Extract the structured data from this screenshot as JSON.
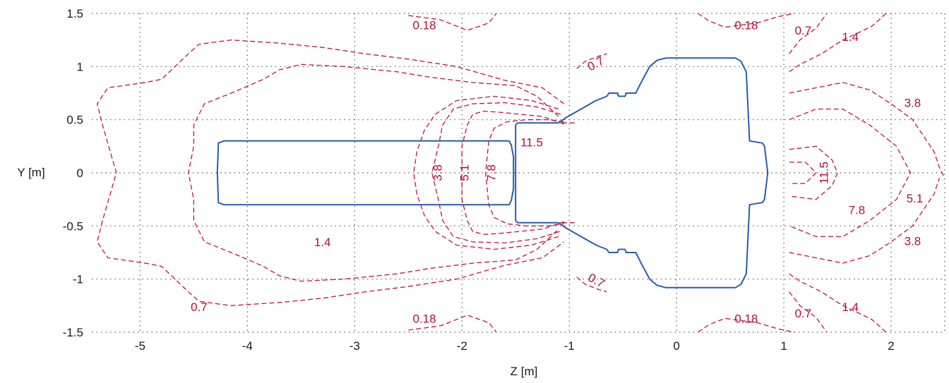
{
  "chart_data": {
    "type": "contour",
    "xlabel": "Z [m]",
    "ylabel": "Y [m]",
    "xlim": [
      -5.45,
      2.5
    ],
    "ylim": [
      -1.5,
      1.5
    ],
    "grid": true,
    "x_ticks": [
      "-5",
      "-4",
      "-3",
      "-2",
      "-1",
      "0",
      "1",
      "2"
    ],
    "y_ticks": [
      "1.5",
      "1",
      "0.5",
      "0",
      "-0.5",
      "-1",
      "-1.5"
    ],
    "colors": {
      "contour": "#c0143c",
      "outline": "#2a5caa",
      "grid": "#555555"
    },
    "contour_labels": [
      {
        "text": "0.18",
        "x": -2.35,
        "y": 1.38,
        "rot": 0
      },
      {
        "text": "0.18",
        "x": 0.65,
        "y": 1.38,
        "rot": 0
      },
      {
        "text": "0.7",
        "x": 1.18,
        "y": 1.33,
        "rot": 0
      },
      {
        "text": "1.4",
        "x": 1.62,
        "y": 1.27,
        "rot": 0
      },
      {
        "text": "0.7",
        "x": -0.75,
        "y": 1.02,
        "rot": -28
      },
      {
        "text": "3.8",
        "x": 2.2,
        "y": 0.65,
        "rot": 0
      },
      {
        "text": "11.5",
        "x": -1.35,
        "y": 0.28,
        "rot": 0
      },
      {
        "text": "3.8",
        "x": -2.22,
        "y": 0.0,
        "rot": -90
      },
      {
        "text": "5.1",
        "x": -1.97,
        "y": 0.0,
        "rot": -90
      },
      {
        "text": "7.8",
        "x": -1.72,
        "y": 0.0,
        "rot": -90
      },
      {
        "text": "11.5",
        "x": 1.38,
        "y": 0.0,
        "rot": -90
      },
      {
        "text": "5.1",
        "x": 2.22,
        "y": -0.25,
        "rot": 0
      },
      {
        "text": "7.8",
        "x": 1.68,
        "y": -0.36,
        "rot": 0
      },
      {
        "text": "3.8",
        "x": 2.2,
        "y": -0.65,
        "rot": 0
      },
      {
        "text": "1.4",
        "x": -3.3,
        "y": -0.66,
        "rot": 0
      },
      {
        "text": "0.7",
        "x": -0.75,
        "y": -1.02,
        "rot": 28
      },
      {
        "text": "0.7",
        "x": -4.45,
        "y": -1.27,
        "rot": 0
      },
      {
        "text": "1.4",
        "x": 1.62,
        "y": -1.27,
        "rot": 0
      },
      {
        "text": "0.7",
        "x": 1.18,
        "y": -1.33,
        "rot": 0
      },
      {
        "text": "0.18",
        "x": -2.35,
        "y": -1.38,
        "rot": 0
      },
      {
        "text": "0.18",
        "x": 0.65,
        "y": -1.38,
        "rot": 0
      }
    ],
    "contour_lines": [
      [
        [
          -2.5,
          1.48
        ],
        [
          -2.2,
          1.44
        ],
        [
          -1.95,
          1.34
        ],
        [
          -1.75,
          1.41
        ],
        [
          -1.68,
          1.5
        ]
      ],
      [
        [
          0.2,
          1.5
        ],
        [
          0.3,
          1.43
        ],
        [
          0.45,
          1.37
        ],
        [
          0.75,
          1.41
        ],
        [
          0.95,
          1.47
        ],
        [
          1.1,
          1.5
        ]
      ],
      [
        [
          1.05,
          1.12
        ],
        [
          1.15,
          1.25
        ],
        [
          1.3,
          1.36
        ],
        [
          1.4,
          1.5
        ]
      ],
      [
        [
          1.05,
          0.95
        ],
        [
          1.15,
          1.02
        ],
        [
          1.35,
          1.12
        ],
        [
          1.55,
          1.25
        ],
        [
          1.7,
          1.32
        ],
        [
          1.82,
          1.38
        ],
        [
          1.9,
          1.45
        ],
        [
          1.95,
          1.5
        ]
      ],
      [
        [
          -0.93,
          0.98
        ],
        [
          -0.85,
          1.05
        ],
        [
          -0.72,
          1.1
        ],
        [
          -0.65,
          1.12
        ]
      ],
      [
        [
          -1.1,
          0.53
        ],
        [
          -1.3,
          0.72
        ],
        [
          -1.5,
          0.82
        ],
        [
          -1.9,
          0.85
        ],
        [
          -2.3,
          0.9
        ],
        [
          -2.6,
          0.95
        ],
        [
          -3.1,
          1.0
        ],
        [
          -3.5,
          1.02
        ],
        [
          -3.7,
          0.97
        ],
        [
          -3.85,
          0.88
        ],
        [
          -4.15,
          0.75
        ],
        [
          -4.4,
          0.65
        ],
        [
          -4.5,
          0.45
        ],
        [
          -4.5,
          0.25
        ],
        [
          -4.55,
          0.0
        ],
        [
          -4.5,
          -0.25
        ],
        [
          -4.5,
          -0.45
        ],
        [
          -4.4,
          -0.65
        ],
        [
          -4.15,
          -0.75
        ],
        [
          -3.85,
          -0.88
        ],
        [
          -3.7,
          -0.97
        ],
        [
          -3.5,
          -1.02
        ],
        [
          -3.1,
          -1.0
        ],
        [
          -2.6,
          -0.95
        ],
        [
          -2.3,
          -0.9
        ],
        [
          -1.9,
          -0.85
        ],
        [
          -1.5,
          -0.82
        ],
        [
          -1.3,
          -0.72
        ],
        [
          -1.1,
          -0.53
        ]
      ],
      [
        [
          -1.05,
          0.65
        ],
        [
          -1.25,
          0.8
        ],
        [
          -1.6,
          0.87
        ],
        [
          -2.05,
          1.0
        ],
        [
          -2.5,
          1.07
        ],
        [
          -2.9,
          1.12
        ],
        [
          -3.3,
          1.18
        ],
        [
          -3.7,
          1.22
        ],
        [
          -4.15,
          1.25
        ],
        [
          -4.45,
          1.21
        ],
        [
          -4.55,
          1.12
        ],
        [
          -4.8,
          0.88
        ],
        [
          -4.95,
          0.85
        ],
        [
          -5.3,
          0.8
        ],
        [
          -5.4,
          0.65
        ],
        [
          -5.35,
          0.45
        ],
        [
          -5.25,
          0.1
        ],
        [
          -5.22,
          0.0
        ],
        [
          -5.25,
          -0.1
        ],
        [
          -5.35,
          -0.45
        ],
        [
          -5.4,
          -0.65
        ],
        [
          -5.3,
          -0.8
        ],
        [
          -4.95,
          -0.85
        ],
        [
          -4.8,
          -0.88
        ],
        [
          -4.55,
          -1.12
        ],
        [
          -4.45,
          -1.21
        ],
        [
          -4.15,
          -1.25
        ],
        [
          -3.7,
          -1.22
        ],
        [
          -3.3,
          -1.18
        ],
        [
          -2.9,
          -1.12
        ],
        [
          -2.5,
          -1.07
        ],
        [
          -2.05,
          -1.0
        ],
        [
          -1.6,
          -0.87
        ],
        [
          -1.25,
          -0.8
        ],
        [
          -1.05,
          -0.65
        ]
      ],
      [
        [
          -1.05,
          0.46
        ],
        [
          -1.25,
          0.53
        ],
        [
          -1.45,
          0.55
        ],
        [
          -1.65,
          0.57
        ],
        [
          -1.8,
          0.58
        ],
        [
          -1.9,
          0.55
        ],
        [
          -1.95,
          0.45
        ],
        [
          -2.0,
          0.25
        ],
        [
          -2.0,
          0.0
        ],
        [
          -2.0,
          -0.25
        ],
        [
          -1.95,
          -0.45
        ],
        [
          -1.9,
          -0.55
        ],
        [
          -1.8,
          -0.58
        ],
        [
          -1.65,
          -0.57
        ],
        [
          -1.45,
          -0.55
        ],
        [
          -1.25,
          -0.53
        ],
        [
          -1.05,
          -0.46
        ]
      ],
      [
        [
          -1.08,
          0.55
        ],
        [
          -1.3,
          0.62
        ],
        [
          -1.6,
          0.66
        ],
        [
          -1.9,
          0.65
        ],
        [
          -2.08,
          0.6
        ],
        [
          -2.18,
          0.45
        ],
        [
          -2.22,
          0.25
        ],
        [
          -2.28,
          0.0
        ],
        [
          -2.22,
          -0.25
        ],
        [
          -2.18,
          -0.45
        ],
        [
          -2.08,
          -0.6
        ],
        [
          -1.9,
          -0.65
        ],
        [
          -1.6,
          -0.66
        ],
        [
          -1.3,
          -0.62
        ],
        [
          -1.08,
          -0.55
        ]
      ],
      [
        [
          -1.1,
          0.6
        ],
        [
          -1.35,
          0.68
        ],
        [
          -1.7,
          0.72
        ],
        [
          -2.05,
          0.68
        ],
        [
          -2.25,
          0.55
        ],
        [
          -2.35,
          0.4
        ],
        [
          -2.42,
          0.2
        ],
        [
          -2.45,
          0.0
        ],
        [
          -2.42,
          -0.2
        ],
        [
          -2.35,
          -0.4
        ],
        [
          -2.25,
          -0.55
        ],
        [
          -2.05,
          -0.68
        ],
        [
          -1.7,
          -0.72
        ],
        [
          -1.35,
          -0.68
        ],
        [
          -1.1,
          -0.6
        ]
      ],
      [
        [
          -1.05,
          0.48
        ],
        [
          -1.2,
          0.5
        ],
        [
          -1.4,
          0.5
        ],
        [
          -1.58,
          0.48
        ],
        [
          -1.7,
          0.42
        ],
        [
          -1.75,
          0.3
        ],
        [
          -1.78,
          0.0
        ],
        [
          -1.75,
          -0.3
        ],
        [
          -1.7,
          -0.42
        ],
        [
          -1.58,
          -0.48
        ],
        [
          -1.4,
          -0.5
        ],
        [
          -1.2,
          -0.5
        ],
        [
          -1.05,
          -0.48
        ]
      ],
      [
        [
          -0.95,
          0.47
        ],
        [
          -1.2,
          0.47
        ]
      ],
      [
        [
          -0.95,
          -0.47
        ],
        [
          -1.2,
          -0.47
        ]
      ],
      [
        [
          1.05,
          0.75
        ],
        [
          1.3,
          0.8
        ],
        [
          1.55,
          0.85
        ],
        [
          1.8,
          0.78
        ],
        [
          2.0,
          0.65
        ],
        [
          2.2,
          0.5
        ],
        [
          2.3,
          0.35
        ],
        [
          2.4,
          0.2
        ],
        [
          2.45,
          0.05
        ],
        [
          2.5,
          -0.05
        ]
      ],
      [
        [
          1.05,
          0.5
        ],
        [
          1.3,
          0.6
        ],
        [
          1.55,
          0.6
        ],
        [
          1.8,
          0.45
        ],
        [
          2.05,
          0.25
        ],
        [
          2.18,
          0.0
        ],
        [
          2.05,
          -0.25
        ],
        [
          1.8,
          -0.45
        ],
        [
          1.55,
          -0.6
        ],
        [
          1.3,
          -0.6
        ],
        [
          1.05,
          -0.5
        ]
      ],
      [
        [
          1.05,
          0.22
        ],
        [
          1.3,
          0.25
        ],
        [
          1.45,
          0.12
        ],
        [
          1.5,
          0.0
        ],
        [
          1.45,
          -0.12
        ],
        [
          1.3,
          -0.25
        ],
        [
          1.05,
          -0.22
        ]
      ],
      [
        [
          1.05,
          0.1
        ],
        [
          1.2,
          0.1
        ],
        [
          1.3,
          0.0
        ],
        [
          1.2,
          -0.1
        ],
        [
          1.05,
          -0.1
        ]
      ],
      [
        [
          1.05,
          -0.75
        ],
        [
          1.3,
          -0.8
        ],
        [
          1.55,
          -0.85
        ],
        [
          1.8,
          -0.78
        ],
        [
          2.0,
          -0.65
        ],
        [
          2.2,
          -0.5
        ],
        [
          2.3,
          -0.35
        ],
        [
          2.4,
          -0.2
        ],
        [
          2.45,
          -0.05
        ]
      ],
      [
        [
          1.05,
          -0.95
        ],
        [
          1.15,
          -1.02
        ],
        [
          1.35,
          -1.12
        ],
        [
          1.55,
          -1.25
        ],
        [
          1.7,
          -1.32
        ],
        [
          1.82,
          -1.38
        ],
        [
          1.9,
          -1.45
        ],
        [
          1.95,
          -1.5
        ]
      ],
      [
        [
          1.05,
          -1.12
        ],
        [
          1.15,
          -1.25
        ],
        [
          1.3,
          -1.36
        ],
        [
          1.4,
          -1.5
        ]
      ],
      [
        [
          -0.93,
          -0.98
        ],
        [
          -0.85,
          -1.05
        ],
        [
          -0.72,
          -1.1
        ],
        [
          -0.65,
          -1.12
        ]
      ],
      [
        [
          -2.5,
          -1.48
        ],
        [
          -2.2,
          -1.44
        ],
        [
          -1.95,
          -1.34
        ],
        [
          -1.75,
          -1.41
        ],
        [
          -1.68,
          -1.5
        ]
      ],
      [
        [
          0.2,
          -1.5
        ],
        [
          0.3,
          -1.43
        ],
        [
          0.45,
          -1.37
        ],
        [
          0.75,
          -1.41
        ],
        [
          0.95,
          -1.47
        ],
        [
          1.1,
          -1.5
        ]
      ]
    ],
    "outlines": [
      [
        [
          -4.22,
          0.3
        ],
        [
          -1.56,
          0.3
        ],
        [
          -1.54,
          0.26
        ],
        [
          -1.52,
          0.15
        ],
        [
          -1.52,
          -0.15
        ],
        [
          -1.54,
          -0.26
        ],
        [
          -1.56,
          -0.3
        ],
        [
          -4.22,
          -0.3
        ],
        [
          -4.27,
          -0.28
        ],
        [
          -4.28,
          0.0
        ],
        [
          -4.27,
          0.28
        ],
        [
          -4.22,
          0.3
        ]
      ],
      [
        [
          -1.5,
          0.45
        ],
        [
          -1.48,
          0.47
        ],
        [
          -1.1,
          0.47
        ],
        [
          -1.03,
          0.52
        ],
        [
          -0.75,
          0.68
        ],
        [
          -0.65,
          0.72
        ],
        [
          -0.63,
          0.75
        ],
        [
          -0.55,
          0.75
        ],
        [
          -0.54,
          0.72
        ],
        [
          -0.48,
          0.72
        ],
        [
          -0.47,
          0.75
        ],
        [
          -0.38,
          0.75
        ],
        [
          -0.33,
          0.85
        ],
        [
          -0.25,
          1.0
        ],
        [
          -0.18,
          1.06
        ],
        [
          -0.1,
          1.08
        ],
        [
          0.55,
          1.08
        ],
        [
          0.6,
          1.05
        ],
        [
          0.65,
          0.95
        ],
        [
          0.68,
          0.3
        ],
        [
          0.8,
          0.28
        ],
        [
          0.82,
          0.25
        ],
        [
          0.85,
          0.0
        ],
        [
          0.82,
          -0.25
        ],
        [
          0.8,
          -0.28
        ],
        [
          0.68,
          -0.3
        ],
        [
          0.65,
          -0.95
        ],
        [
          0.6,
          -1.05
        ],
        [
          0.55,
          -1.08
        ],
        [
          -0.1,
          -1.08
        ],
        [
          -0.18,
          -1.06
        ],
        [
          -0.25,
          -1.0
        ],
        [
          -0.33,
          -0.85
        ],
        [
          -0.38,
          -0.75
        ],
        [
          -0.47,
          -0.75
        ],
        [
          -0.48,
          -0.72
        ],
        [
          -0.54,
          -0.72
        ],
        [
          -0.55,
          -0.75
        ],
        [
          -0.63,
          -0.75
        ],
        [
          -0.65,
          -0.72
        ],
        [
          -0.75,
          -0.68
        ],
        [
          -1.03,
          -0.52
        ],
        [
          -1.1,
          -0.47
        ],
        [
          -1.48,
          -0.47
        ],
        [
          -1.5,
          -0.45
        ],
        [
          -1.5,
          0.45
        ]
      ]
    ]
  }
}
